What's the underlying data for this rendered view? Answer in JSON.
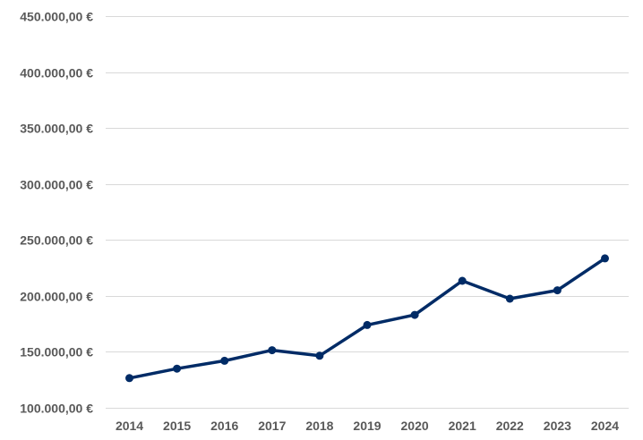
{
  "chart_data": {
    "type": "line",
    "title": "",
    "xlabel": "",
    "ylabel": "",
    "categories": [
      "2014",
      "2015",
      "2016",
      "2017",
      "2018",
      "2019",
      "2020",
      "2021",
      "2022",
      "2023",
      "2024"
    ],
    "series": [
      {
        "values": [
          126500,
          135000,
          142000,
          151500,
          146500,
          174000,
          183000,
          213500,
          197500,
          205000,
          233500
        ],
        "color": "#002b66"
      }
    ],
    "ylim": [
      100000,
      450000
    ],
    "yticks": [
      100000,
      150000,
      200000,
      250000,
      300000,
      350000,
      400000,
      450000
    ],
    "ytick_labels": [
      "100.000,00 €",
      "150.000,00 €",
      "200.000,00 €",
      "250.000,00 €",
      "300.000,00 €",
      "350.000,00 €",
      "400.000,00 €",
      "450.000,00 €"
    ],
    "grid": "horizontal",
    "legend": "none",
    "grid_color": "#d9d9d9",
    "tick_label_color": "#595959"
  }
}
